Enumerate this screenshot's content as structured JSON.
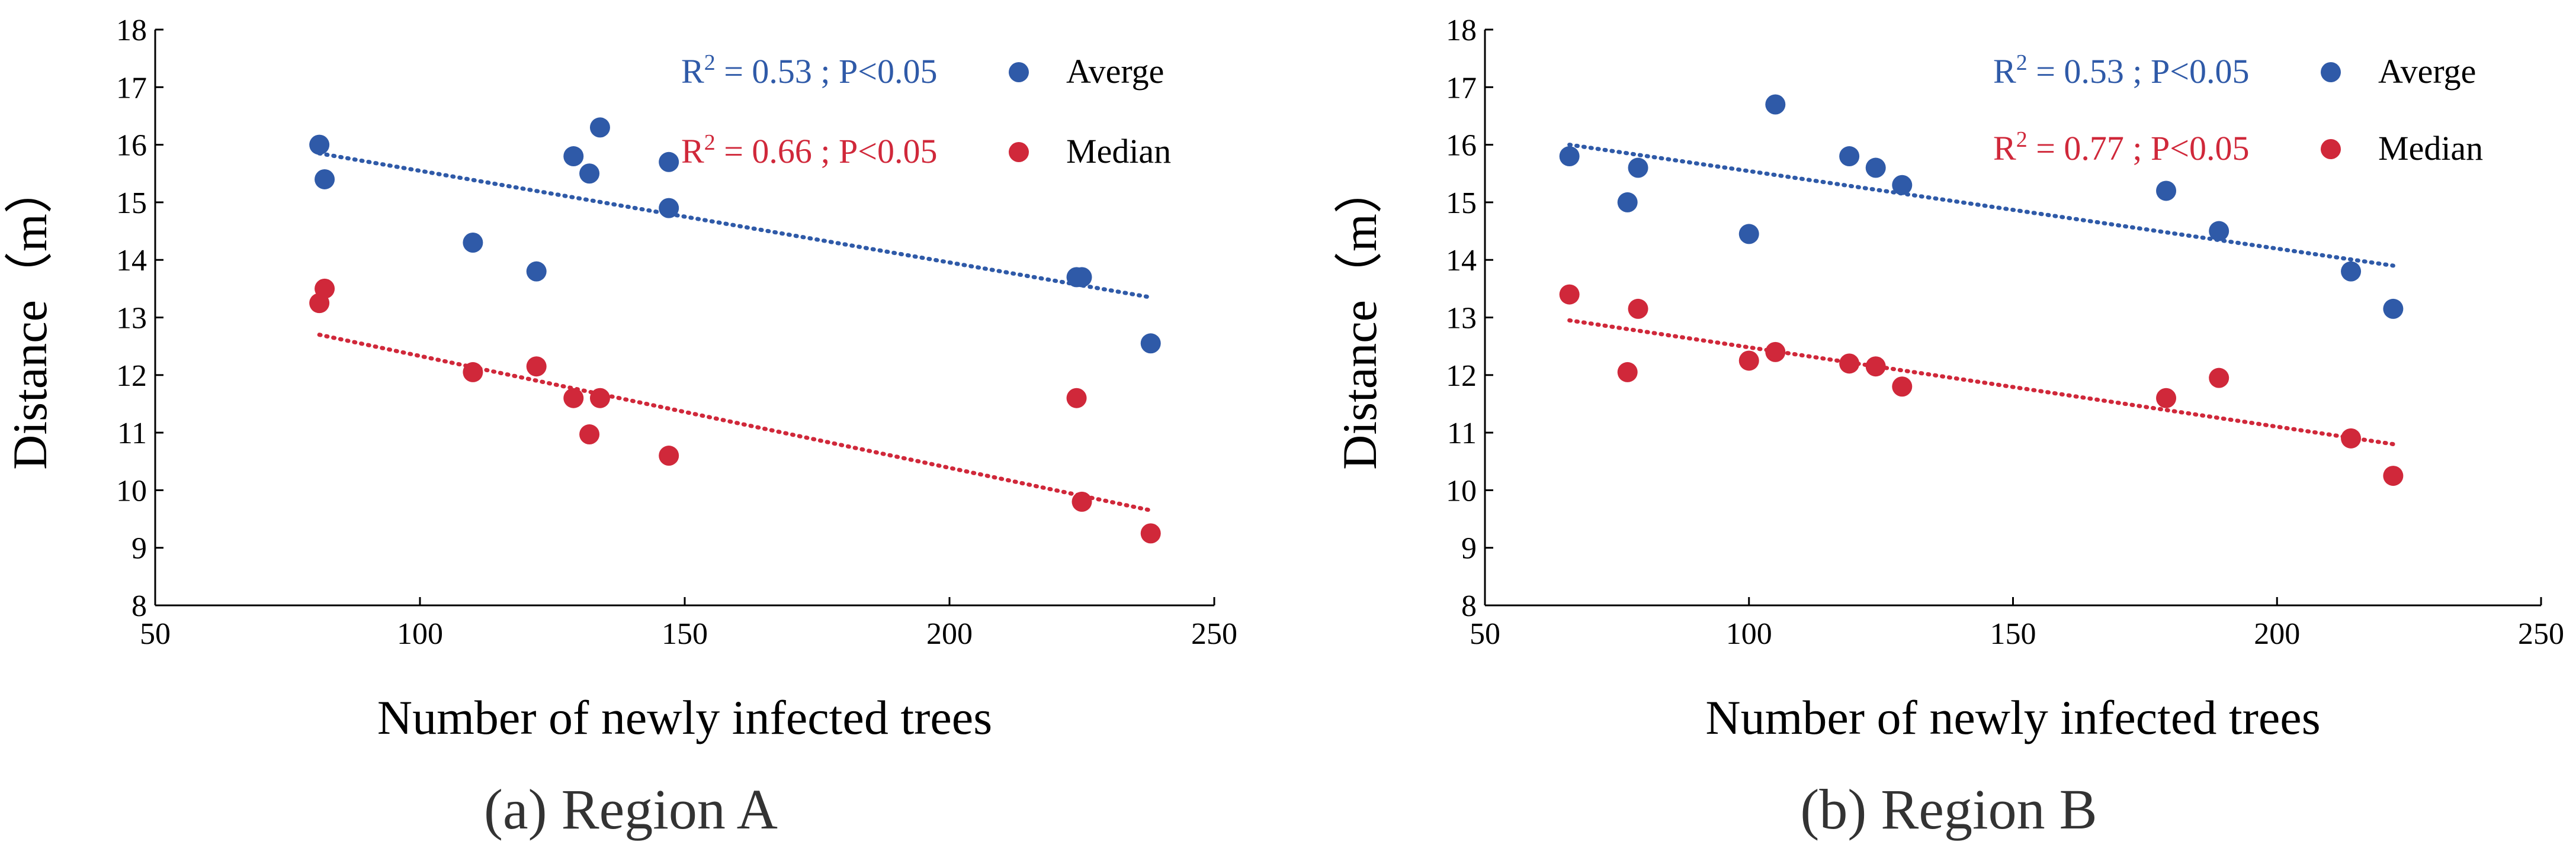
{
  "chart_data": [
    {
      "type": "scatter",
      "caption": "(a) Region A",
      "xlabel": "Number of newly infected trees",
      "ylabel": "Distance（m）",
      "xlim": [
        50,
        250
      ],
      "ylim": [
        8,
        18
      ],
      "xticks": [
        "50",
        "100",
        "150",
        "200",
        "250"
      ],
      "yticks": [
        "8",
        "9",
        "10",
        "11",
        "12",
        "13",
        "14",
        "15",
        "16",
        "17",
        "18"
      ],
      "series": [
        {
          "name": "Averge",
          "color": "#2f5aa8",
          "annotation_r": "R",
          "annotation_rest": " = 0.53 ; P<0.05",
          "trend": [
            [
              81,
              15.85
            ],
            [
              238,
              13.35
            ]
          ],
          "points": [
            [
              81,
              16.0
            ],
            [
              82,
              15.4
            ],
            [
              110,
              14.3
            ],
            [
              122,
              13.8
            ],
            [
              129,
              15.8
            ],
            [
              132,
              15.5
            ],
            [
              134,
              16.3
            ],
            [
              147,
              15.7
            ],
            [
              147,
              14.9
            ],
            [
              224,
              13.7
            ],
            [
              225,
              13.7
            ],
            [
              238,
              12.55
            ]
          ]
        },
        {
          "name": "Median",
          "color": "#d0283a",
          "annotation_r": "R",
          "annotation_rest": " = 0.66 ; P<0.05",
          "trend": [
            [
              81,
              12.7
            ],
            [
              238,
              9.65
            ]
          ],
          "points": [
            [
              81,
              13.25
            ],
            [
              82,
              13.5
            ],
            [
              110,
              12.05
            ],
            [
              122,
              12.15
            ],
            [
              129,
              11.6
            ],
            [
              132,
              10.97
            ],
            [
              134,
              11.6
            ],
            [
              147,
              10.6
            ],
            [
              224,
              11.6
            ],
            [
              225,
              9.8
            ],
            [
              238,
              9.25
            ]
          ]
        }
      ]
    },
    {
      "type": "scatter",
      "caption": "(b) Region B",
      "xlabel": "Number of newly infected trees",
      "ylabel": "Distance（m）",
      "xlim": [
        50,
        250
      ],
      "ylim": [
        8,
        18
      ],
      "xticks": [
        "50",
        "100",
        "150",
        "200",
        "250"
      ],
      "yticks": [
        "8",
        "9",
        "10",
        "11",
        "12",
        "13",
        "14",
        "15",
        "16",
        "17",
        "18"
      ],
      "series": [
        {
          "name": "Averge",
          "color": "#2f5aa8",
          "annotation_r": "R",
          "annotation_rest": " = 0.53 ; P<0.05",
          "trend": [
            [
              66,
              16.0
            ],
            [
              222,
              13.9
            ]
          ],
          "points": [
            [
              66,
              15.8
            ],
            [
              77,
              15.0
            ],
            [
              79,
              15.6
            ],
            [
              100,
              14.45
            ],
            [
              105,
              16.7
            ],
            [
              119,
              15.8
            ],
            [
              124,
              15.6
            ],
            [
              129,
              15.3
            ],
            [
              179,
              15.2
            ],
            [
              189,
              14.5
            ],
            [
              214,
              13.8
            ],
            [
              222,
              13.15
            ]
          ]
        },
        {
          "name": "Median",
          "color": "#d0283a",
          "annotation_r": "R",
          "annotation_rest": " = 0.77 ; P<0.05",
          "trend": [
            [
              66,
              12.95
            ],
            [
              222,
              10.8
            ]
          ],
          "points": [
            [
              66,
              13.4
            ],
            [
              77,
              12.05
            ],
            [
              79,
              13.15
            ],
            [
              100,
              12.25
            ],
            [
              105,
              12.4
            ],
            [
              119,
              12.2
            ],
            [
              124,
              12.15
            ],
            [
              129,
              11.8
            ],
            [
              179,
              11.6
            ],
            [
              189,
              11.95
            ],
            [
              214,
              10.9
            ],
            [
              222,
              10.25
            ]
          ]
        }
      ]
    }
  ]
}
